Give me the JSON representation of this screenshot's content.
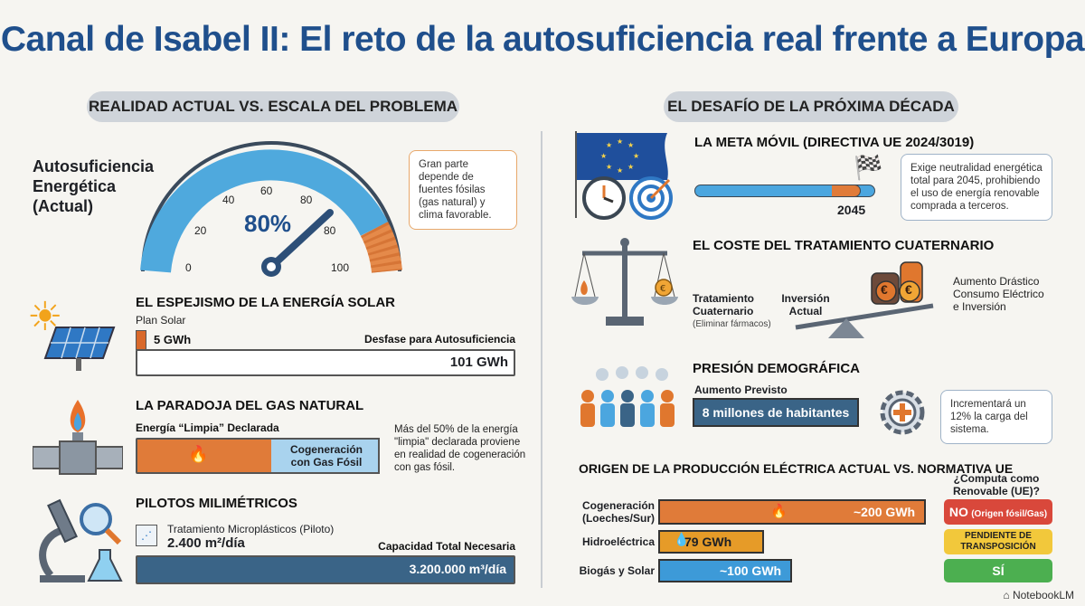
{
  "title": "Canal de Isabel II: El reto de la autosuficiencia real frente a Europa",
  "left": {
    "header": "REALIDAD ACTUAL VS. ESCALA DEL PROBLEMA",
    "gauge": {
      "label": "Autosuficiencia Energética (Actual)",
      "value_text": "80%",
      "value": 80,
      "ticks": [
        "0",
        "20",
        "40",
        "60",
        "80",
        "80",
        "100"
      ],
      "note": "Gran parte depende de fuentes fósilas (gas natural) y clima favorable."
    },
    "solar": {
      "heading": "EL ESPEJISMO DE LA ENERGÍA SOLAR",
      "plan_label": "Plan Solar",
      "plan_value": "5 GWh",
      "gap_label": "Desfase para Autosuficiencia",
      "gap_value": "101 GWh"
    },
    "gas": {
      "heading": "LA PARADOJA DEL GAS NATURAL",
      "declared_label": "Energía “Limpia” Declarada",
      "segment_label": "Cogeneración con Gas Fósil",
      "note": "Más del 50% de la energía \"limpia\" declarada proviene en realidad de cogeneración con gas fósil."
    },
    "pilots": {
      "heading": "PILOTOS MILIMÉTRICOS",
      "pilot_label": "Tratamiento Microplásticos (Piloto)",
      "pilot_value": "2.400 m²/día",
      "capacity_label": "Capacidad Total Necesaria",
      "capacity_value": "3.200.000 m³/día"
    }
  },
  "right": {
    "header": "EL DESAFÍO DE LA PRÓXIMA DÉCADA",
    "goal": {
      "heading": "LA META MÓVIL (DIRECTIVA UE 2024/3019)",
      "year": "2045",
      "note": "Exige neutralidad energética total para 2045, prohibiendo el uso de energía renovable comprada a terceros."
    },
    "cost": {
      "heading": "EL COSTE DEL TRATAMIENTO CUATERNARIO",
      "left_label": "Tratamiento Cuaternario",
      "left_sub": "(Eliminar fármacos)",
      "right_label": "Inversión Actual",
      "note": "Aumento Drástico Consumo Eléctrico e Inversión",
      "coin_symbol": "€"
    },
    "demo": {
      "heading": "PRESIÓN DEMOGRÁFICA",
      "label": "Aumento Previsto",
      "value": "8 millones de habitantes",
      "note": "Incrementará un 12% la carga del sistema."
    },
    "origin": {
      "heading": "ORIGEN DE LA PRODUCCIÓN ELÉCTRICA ACTUAL VS. NORMATIVA UE",
      "question": "¿Computa como Renovable (UE)?",
      "rows": [
        {
          "label": "Cogeneración (Loeches/Sur)",
          "value": "~200 GWh",
          "amount": 200,
          "color": "#e07b39",
          "badge": "NO",
          "badge_sub": "(Origen fósil/Gas)",
          "badge_color": "#d9483b"
        },
        {
          "label": "Hidroeléctrica",
          "value": "79 GWh",
          "amount": 79,
          "color": "#e69b28",
          "badge": "PENDIENTE DE TRANSPOSICIÓN",
          "badge_sub": "",
          "badge_color": "#f2c83b"
        },
        {
          "label": "Biogás y Solar",
          "value": "~100 GWh",
          "amount": 100,
          "color": "#3d9ad8",
          "badge": "SÍ",
          "badge_sub": "",
          "badge_color": "#4caf50"
        }
      ]
    }
  },
  "footer": "NotebookLM"
}
